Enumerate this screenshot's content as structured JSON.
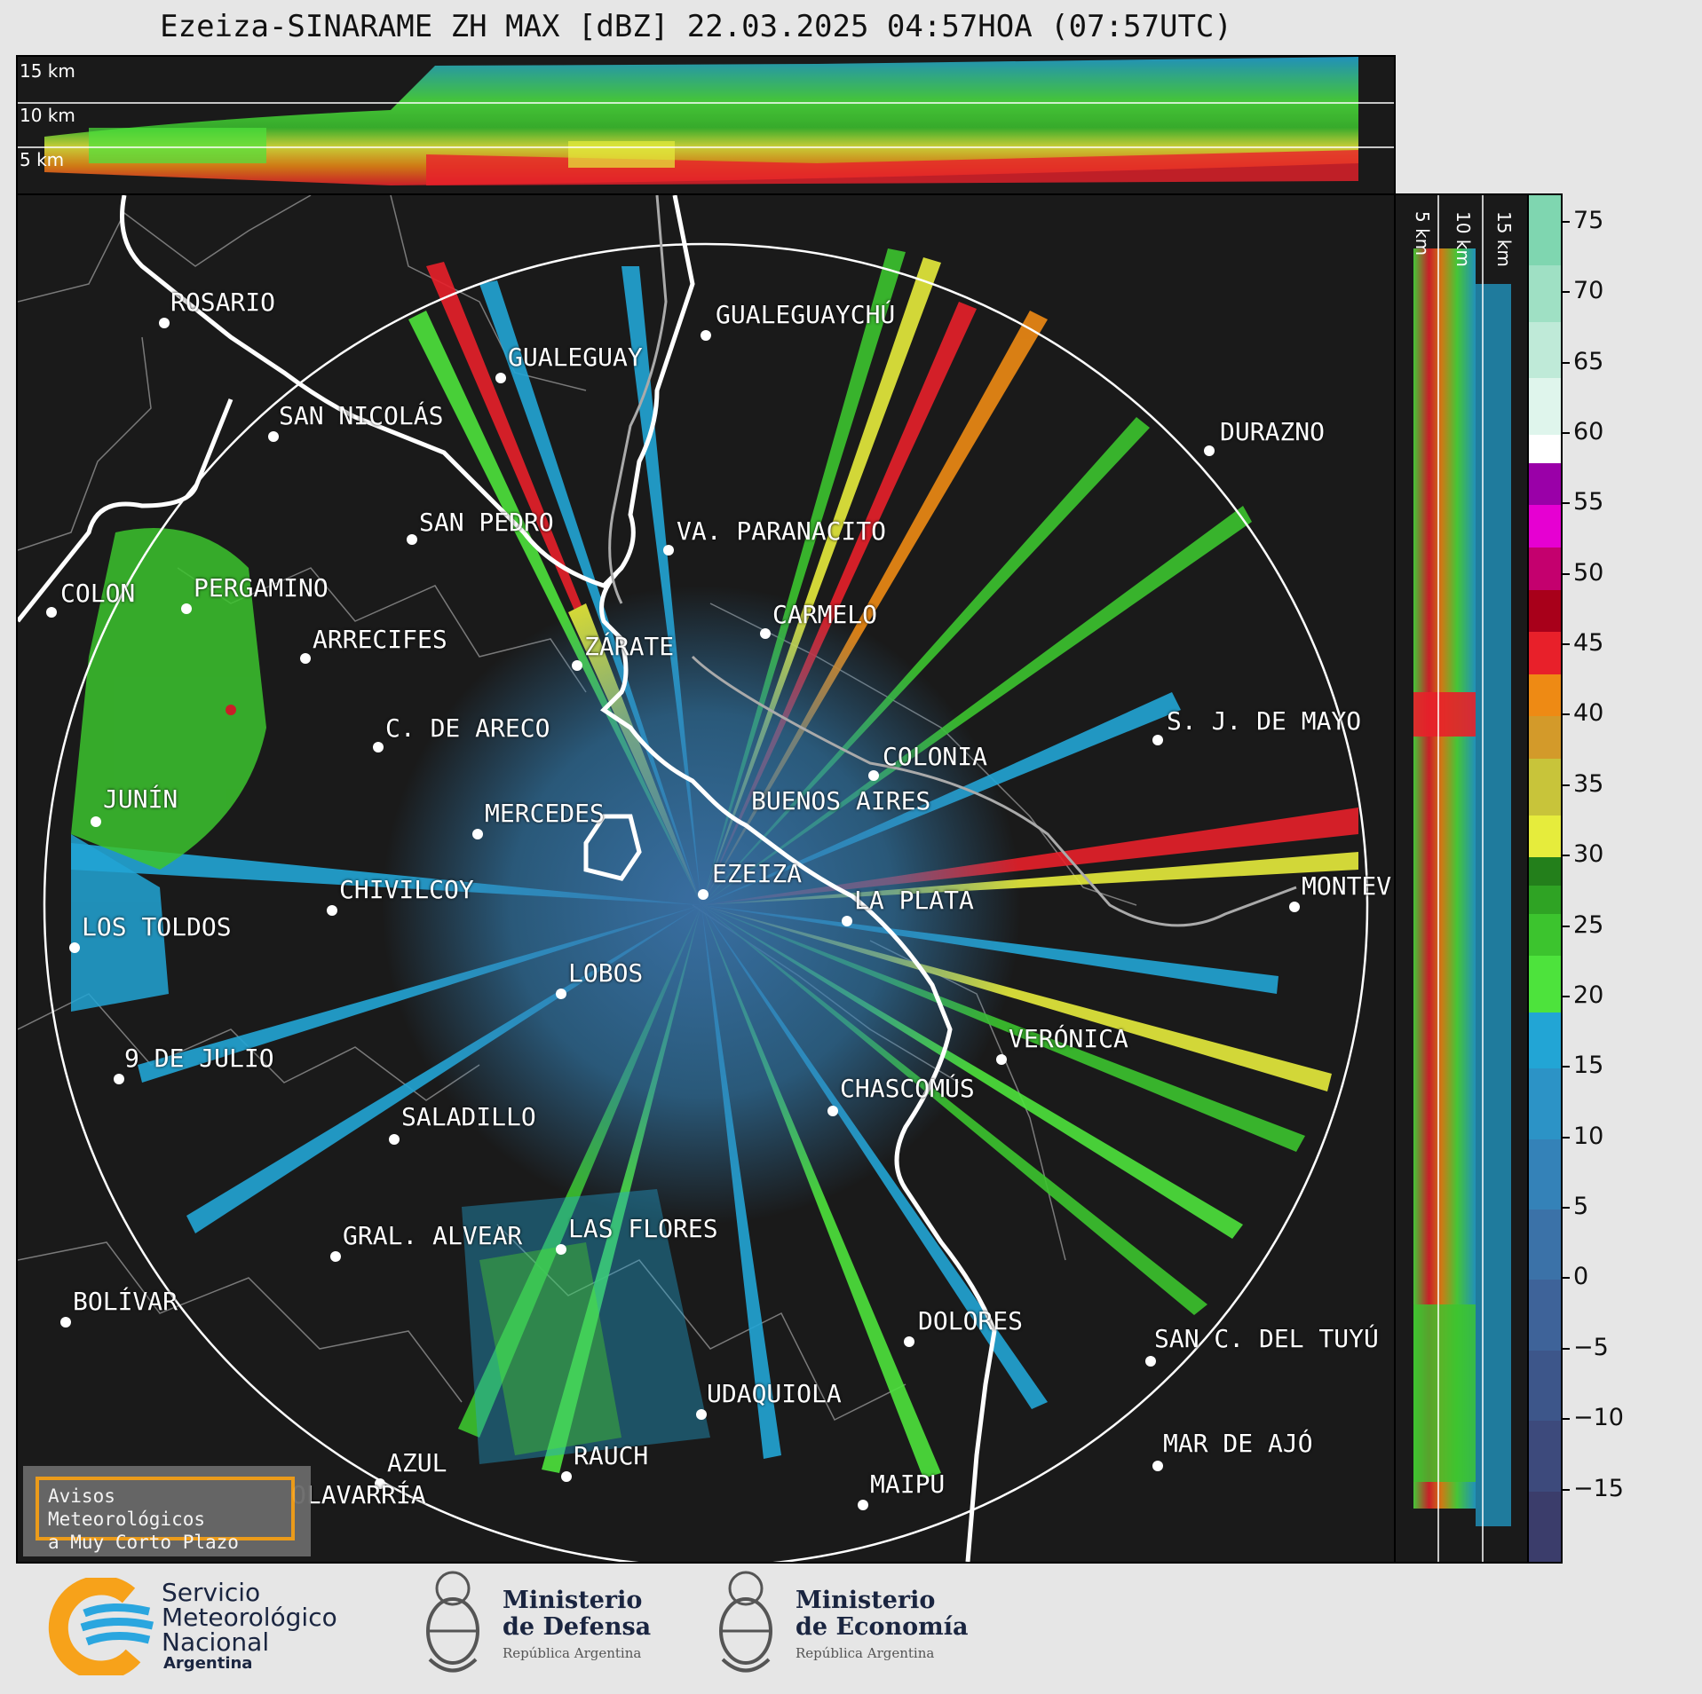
{
  "title": "Ezeiza-SINARAME ZH MAX [dBZ] 22.03.2025 04:57HOA (07:57UTC)",
  "top_panel": {
    "altitude_labels": [
      "15 km",
      "10 km",
      "5 km"
    ]
  },
  "right_panel": {
    "altitude_labels": [
      "5 km",
      "10 km",
      "15 km"
    ]
  },
  "colorbar": {
    "unit": "dBZ",
    "ticks": [
      "75",
      "70",
      "65",
      "60",
      "55",
      "50",
      "45",
      "40",
      "35",
      "30",
      "25",
      "20",
      "15",
      "10",
      "5",
      "0",
      "−5",
      "−10",
      "−15"
    ],
    "range": [
      -20,
      77
    ],
    "color_stops": [
      {
        "from": -20,
        "to": -15,
        "color": "#3b3d6b"
      },
      {
        "from": -15,
        "to": -10,
        "color": "#3d4a7c"
      },
      {
        "from": -10,
        "to": -5,
        "color": "#3d568a"
      },
      {
        "from": -5,
        "to": 0,
        "color": "#3e6399"
      },
      {
        "from": 0,
        "to": 5,
        "color": "#3b72a8"
      },
      {
        "from": 5,
        "to": 10,
        "color": "#3482b8"
      },
      {
        "from": 10,
        "to": 15,
        "color": "#2c93c6"
      },
      {
        "from": 15,
        "to": 19,
        "color": "#22a5d5"
      },
      {
        "from": 19,
        "to": 23,
        "color": "#4de33c"
      },
      {
        "from": 23,
        "to": 26,
        "color": "#3cc42e"
      },
      {
        "from": 26,
        "to": 28,
        "color": "#2fa324"
      },
      {
        "from": 28,
        "to": 30,
        "color": "#237f1b"
      },
      {
        "from": 30,
        "to": 33,
        "color": "#e6ec3c"
      },
      {
        "from": 33,
        "to": 37,
        "color": "#c8c43a"
      },
      {
        "from": 37,
        "to": 40,
        "color": "#d39a2a"
      },
      {
        "from": 40,
        "to": 43,
        "color": "#ee8a14"
      },
      {
        "from": 43,
        "to": 46,
        "color": "#e8202a"
      },
      {
        "from": 46,
        "to": 49,
        "color": "#a8001a"
      },
      {
        "from": 49,
        "to": 52,
        "color": "#c4006e"
      },
      {
        "from": 52,
        "to": 55,
        "color": "#e600d2"
      },
      {
        "from": 55,
        "to": 58,
        "color": "#9a00a8"
      },
      {
        "from": 58,
        "to": 60,
        "color": "#ffffff"
      },
      {
        "from": 60,
        "to": 64,
        "color": "#dff5ec"
      },
      {
        "from": 64,
        "to": 68,
        "color": "#bfead8"
      },
      {
        "from": 68,
        "to": 72,
        "color": "#9fe0c4"
      },
      {
        "from": 72,
        "to": 77,
        "color": "#7fd6b0"
      }
    ]
  },
  "cities": [
    {
      "name": "ROSARIO"
    },
    {
      "name": "GUALEGUAYCHÚ"
    },
    {
      "name": "GUALEGUAY"
    },
    {
      "name": "SAN NICOLÁS"
    },
    {
      "name": "DURAZNO"
    },
    {
      "name": "SAN PEDRO"
    },
    {
      "name": "VA. PARANACITO"
    },
    {
      "name": "COLON"
    },
    {
      "name": "PERGAMINO"
    },
    {
      "name": "CARMELO"
    },
    {
      "name": "ARRECIFES"
    },
    {
      "name": "ZÁRATE"
    },
    {
      "name": "S. J. DE MAYO"
    },
    {
      "name": "C. DE ARECO"
    },
    {
      "name": "COLONIA"
    },
    {
      "name": "JUNÍN"
    },
    {
      "name": "BUENOS AIRES"
    },
    {
      "name": "MERCEDES"
    },
    {
      "name": "EZEIZA"
    },
    {
      "name": "MONTEV"
    },
    {
      "name": "CHIVILCOY"
    },
    {
      "name": "LA PLATA"
    },
    {
      "name": "LOS TOLDOS"
    },
    {
      "name": "LOBOS"
    },
    {
      "name": "VERÓNICA"
    },
    {
      "name": "9 DE JULIO"
    },
    {
      "name": "CHASCOMÚS"
    },
    {
      "name": "SALADILLO"
    },
    {
      "name": "GRAL. ALVEAR"
    },
    {
      "name": "LAS FLORES"
    },
    {
      "name": "BOLÍVAR"
    },
    {
      "name": "DOLORES"
    },
    {
      "name": "SAN C. DEL TUYÚ"
    },
    {
      "name": "UDAQUIOLA"
    },
    {
      "name": "MAR DE AJÓ"
    },
    {
      "name": "AZUL"
    },
    {
      "name": "RAUCH"
    },
    {
      "name": "OLAVARRÍA"
    },
    {
      "name": "MAIPU"
    }
  ],
  "warning_box": {
    "line1": "Avisos Meteorológicos",
    "line2": "a Muy Corto Plazo"
  },
  "footer": {
    "smn": {
      "line1": "Servicio",
      "line2": "Meteorológico",
      "line3": "Nacional",
      "line4": "Argentina"
    },
    "defensa": {
      "line1": "Ministerio",
      "line2": "de Defensa",
      "line3": "República Argentina"
    },
    "economia": {
      "line1": "Ministerio",
      "line2": "de Economía",
      "line3": "República Argentina"
    }
  },
  "colors": {
    "background": "#1a1a1a",
    "figure": "#e6e6e6",
    "river": "#ffffff",
    "boundary": "#808080",
    "warning_border": "#f7a21a",
    "smn_orange": "#f7a21a",
    "smn_blue": "#2aa6df"
  }
}
